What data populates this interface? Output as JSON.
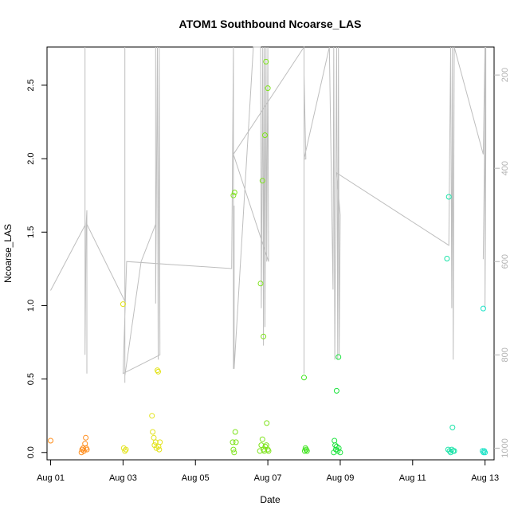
{
  "chart_data": {
    "type": "scatter",
    "title": "ATOM1 Southbound Ncoarse_LAS",
    "xlabel": "Date",
    "ylabel": "Ncoarse_LAS",
    "xlim": [
      -0.1,
      12.25
    ],
    "ylim": [
      -0.05,
      2.76
    ],
    "x_ticks": [
      {
        "value": 0,
        "label": "Aug 01"
      },
      {
        "value": 2,
        "label": "Aug 03"
      },
      {
        "value": 4,
        "label": "Aug 05"
      },
      {
        "value": 6,
        "label": "Aug 07"
      },
      {
        "value": 8,
        "label": "Aug 09"
      },
      {
        "value": 10,
        "label": "Aug 11"
      },
      {
        "value": 12,
        "label": "Aug 13"
      }
    ],
    "y_ticks": [
      0.0,
      0.5,
      1.0,
      1.5,
      2.0,
      2.5
    ],
    "y_tick_labels": [
      "0.0",
      "0.5",
      "1.0",
      "1.5",
      "2.0",
      "2.5"
    ],
    "y2_lim": [
      1025,
      140
    ],
    "y2_ticks": [
      200,
      400,
      600,
      800,
      1000
    ],
    "y2_tick_labels": [
      "200",
      "400",
      "600",
      "800",
      "1000"
    ],
    "y2_line_color": "#bebebe",
    "grid": false,
    "points": [
      {
        "x": 0.0,
        "y": 0.08,
        "color": "#ff8c1a"
      },
      {
        "x": 0.85,
        "y": 0.0,
        "color": "#ff8c1a"
      },
      {
        "x": 0.87,
        "y": 0.02,
        "color": "#ff8c1a"
      },
      {
        "x": 0.9,
        "y": 0.03,
        "color": "#ff8c1a"
      },
      {
        "x": 0.92,
        "y": 0.01,
        "color": "#ff8c1a"
      },
      {
        "x": 0.95,
        "y": 0.06,
        "color": "#ff8c1a"
      },
      {
        "x": 0.97,
        "y": 0.1,
        "color": "#ff8c1a"
      },
      {
        "x": 0.98,
        "y": 0.03,
        "color": "#ff8c1a"
      },
      {
        "x": 1.0,
        "y": 0.02,
        "color": "#ff8c1a"
      },
      {
        "x": 2.0,
        "y": 1.01,
        "color": "#e3e31a"
      },
      {
        "x": 2.02,
        "y": 0.03,
        "color": "#e3e31a"
      },
      {
        "x": 2.05,
        "y": 0.01,
        "color": "#e3e31a"
      },
      {
        "x": 2.08,
        "y": 0.02,
        "color": "#e3e31a"
      },
      {
        "x": 2.8,
        "y": 0.25,
        "color": "#e3e31a"
      },
      {
        "x": 2.82,
        "y": 0.14,
        "color": "#e3e31a"
      },
      {
        "x": 2.85,
        "y": 0.1,
        "color": "#e3e31a"
      },
      {
        "x": 2.87,
        "y": 0.05,
        "color": "#e3e31a"
      },
      {
        "x": 2.9,
        "y": 0.07,
        "color": "#e3e31a"
      },
      {
        "x": 2.92,
        "y": 0.03,
        "color": "#e3e31a"
      },
      {
        "x": 2.95,
        "y": 0.56,
        "color": "#e3e31a"
      },
      {
        "x": 2.97,
        "y": 0.55,
        "color": "#e3e31a"
      },
      {
        "x": 2.98,
        "y": 0.04,
        "color": "#e3e31a"
      },
      {
        "x": 3.0,
        "y": 0.02,
        "color": "#e3e31a"
      },
      {
        "x": 3.02,
        "y": 0.07,
        "color": "#e3e31a"
      },
      {
        "x": 5.05,
        "y": 1.75,
        "color": "#7de31a"
      },
      {
        "x": 5.08,
        "y": 1.77,
        "color": "#7de31a"
      },
      {
        "x": 5.03,
        "y": 0.07,
        "color": "#7de31a"
      },
      {
        "x": 5.05,
        "y": 0.02,
        "color": "#7de31a"
      },
      {
        "x": 5.07,
        "y": 0.0,
        "color": "#7de31a"
      },
      {
        "x": 5.1,
        "y": 0.14,
        "color": "#7de31a"
      },
      {
        "x": 5.12,
        "y": 0.07,
        "color": "#7de31a"
      },
      {
        "x": 5.8,
        "y": 1.15,
        "color": "#7de31a"
      },
      {
        "x": 5.85,
        "y": 1.85,
        "color": "#7de31a"
      },
      {
        "x": 5.88,
        "y": 0.79,
        "color": "#7de31a"
      },
      {
        "x": 5.92,
        "y": 2.16,
        "color": "#7de31a"
      },
      {
        "x": 5.95,
        "y": 2.66,
        "color": "#7de31a"
      },
      {
        "x": 6.0,
        "y": 2.48,
        "color": "#7de31a"
      },
      {
        "x": 5.97,
        "y": 0.2,
        "color": "#7de31a"
      },
      {
        "x": 5.78,
        "y": 0.01,
        "color": "#7de31a"
      },
      {
        "x": 5.82,
        "y": 0.05,
        "color": "#7de31a"
      },
      {
        "x": 5.85,
        "y": 0.09,
        "color": "#7de31a"
      },
      {
        "x": 5.88,
        "y": 0.02,
        "color": "#7de31a"
      },
      {
        "x": 5.9,
        "y": 0.01,
        "color": "#7de31a"
      },
      {
        "x": 5.93,
        "y": 0.04,
        "color": "#7de31a"
      },
      {
        "x": 5.96,
        "y": 0.05,
        "color": "#7de31a"
      },
      {
        "x": 6.0,
        "y": 0.02,
        "color": "#7de31a"
      },
      {
        "x": 6.02,
        "y": 0.01,
        "color": "#7de31a"
      },
      {
        "x": 7.0,
        "y": 0.51,
        "color": "#3ce31a"
      },
      {
        "x": 7.02,
        "y": 0.01,
        "color": "#3ce31a"
      },
      {
        "x": 7.04,
        "y": 0.03,
        "color": "#3ce31a"
      },
      {
        "x": 7.06,
        "y": 0.02,
        "color": "#3ce31a"
      },
      {
        "x": 7.08,
        "y": 0.01,
        "color": "#3ce31a"
      },
      {
        "x": 7.9,
        "y": 0.42,
        "color": "#1ae33c"
      },
      {
        "x": 7.95,
        "y": 0.65,
        "color": "#1ae33c"
      },
      {
        "x": 7.82,
        "y": 0.0,
        "color": "#1ae33c"
      },
      {
        "x": 7.84,
        "y": 0.08,
        "color": "#1ae33c"
      },
      {
        "x": 7.86,
        "y": 0.05,
        "color": "#1ae33c"
      },
      {
        "x": 7.88,
        "y": 0.02,
        "color": "#1ae33c"
      },
      {
        "x": 7.9,
        "y": 0.04,
        "color": "#1ae33c"
      },
      {
        "x": 7.93,
        "y": 0.01,
        "color": "#1ae33c"
      },
      {
        "x": 7.96,
        "y": 0.03,
        "color": "#1ae33c"
      },
      {
        "x": 8.0,
        "y": 0.0,
        "color": "#1ae33c"
      },
      {
        "x": 10.95,
        "y": 1.32,
        "color": "#1ae3a8"
      },
      {
        "x": 11.0,
        "y": 1.74,
        "color": "#1ae3a8"
      },
      {
        "x": 11.1,
        "y": 0.17,
        "color": "#1ae3a8"
      },
      {
        "x": 10.98,
        "y": 0.02,
        "color": "#1ae3a8"
      },
      {
        "x": 11.02,
        "y": 0.01,
        "color": "#1ae3a8"
      },
      {
        "x": 11.05,
        "y": 0.0,
        "color": "#1ae3a8"
      },
      {
        "x": 11.08,
        "y": 0.02,
        "color": "#1ae3a8"
      },
      {
        "x": 11.12,
        "y": 0.01,
        "color": "#1ae3a8"
      },
      {
        "x": 11.15,
        "y": 0.01,
        "color": "#1ae3a8"
      },
      {
        "x": 11.95,
        "y": 0.98,
        "color": "#1ae3c7"
      },
      {
        "x": 11.93,
        "y": 0.01,
        "color": "#1ae3c7"
      },
      {
        "x": 11.96,
        "y": 0.0,
        "color": "#1ae3c7"
      },
      {
        "x": 11.98,
        "y": 0.01,
        "color": "#1ae3c7"
      },
      {
        "x": 12.0,
        "y": 0.0,
        "color": "#1ae3c7"
      }
    ],
    "pressure_line": [
      [
        0.0,
        662
      ],
      [
        0.95,
        522
      ],
      [
        0.95,
        140
      ],
      [
        0.95,
        800
      ],
      [
        0.98,
        520
      ],
      [
        1.0,
        490
      ],
      [
        1.0,
        840
      ],
      [
        1.0,
        520
      ],
      [
        2.05,
        685
      ],
      [
        2.05,
        140
      ],
      [
        2.05,
        840
      ],
      [
        2.05,
        860
      ],
      [
        2.05,
        845
      ],
      [
        2.5,
        600
      ],
      [
        2.9,
        520
      ],
      [
        2.9,
        140
      ],
      [
        2.9,
        690
      ],
      [
        2.95,
        140
      ],
      [
        2.97,
        810
      ],
      [
        3.0,
        140
      ],
      [
        3.02,
        800
      ],
      [
        2.0,
        840
      ],
      [
        2.1,
        600
      ],
      [
        5.0,
        615
      ],
      [
        5.05,
        140
      ],
      [
        5.05,
        830
      ],
      [
        5.07,
        480
      ],
      [
        5.07,
        830
      ],
      [
        5.6,
        140
      ],
      [
        5.8,
        140
      ],
      [
        5.82,
        700
      ],
      [
        5.86,
        140
      ],
      [
        5.88,
        780
      ],
      [
        5.9,
        140
      ],
      [
        5.92,
        740
      ],
      [
        5.95,
        140
      ],
      [
        5.97,
        600
      ],
      [
        6.0,
        140
      ],
      [
        6.02,
        600
      ],
      [
        5.05,
        370
      ],
      [
        7.0,
        140
      ],
      [
        7.0,
        840
      ],
      [
        7.0,
        200
      ],
      [
        7.05,
        380
      ],
      [
        7.0,
        380
      ],
      [
        7.7,
        140
      ],
      [
        7.8,
        660
      ],
      [
        7.82,
        140
      ],
      [
        7.85,
        810
      ],
      [
        7.9,
        140
      ],
      [
        7.93,
        810
      ],
      [
        7.95,
        140
      ],
      [
        7.97,
        800
      ],
      [
        8.0,
        500
      ],
      [
        7.9,
        410
      ],
      [
        11.0,
        565
      ],
      [
        11.05,
        140
      ],
      [
        11.08,
        700
      ],
      [
        11.1,
        140
      ],
      [
        11.12,
        810
      ],
      [
        11.15,
        140
      ],
      [
        11.95,
        370
      ],
      [
        12.0,
        140
      ],
      [
        12.0,
        700
      ],
      [
        12.02,
        360
      ],
      [
        12.02,
        140
      ],
      [
        11.95,
        595
      ]
    ]
  }
}
